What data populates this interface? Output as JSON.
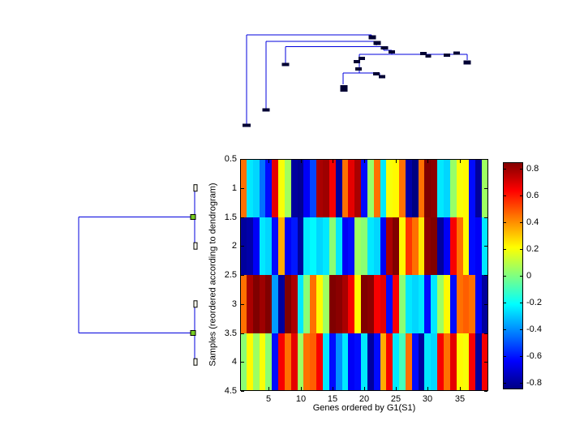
{
  "figure": {
    "background": "#ffffff"
  },
  "chart_data": [
    {
      "type": "heatmap",
      "title": "",
      "xlabel": "Genes ordered by G1(S1)",
      "ylabel": "Samples (reordered according to dendrogram)",
      "x_range": [
        0.5,
        39.5
      ],
      "y_range": [
        0.5,
        4.5
      ],
      "x_ticks": [
        5,
        10,
        15,
        20,
        25,
        30,
        35
      ],
      "x_tick_labels": [
        "5",
        "10",
        "15",
        "20",
        "25",
        "30",
        "35"
      ],
      "y_ticks": [
        0.5,
        1,
        1.5,
        2,
        2.5,
        3,
        3.5,
        4,
        4.5
      ],
      "y_tick_labels": [
        "0.5",
        "1",
        "1.5",
        "2",
        "2.5",
        "3",
        "3.5",
        "4",
        "4.5"
      ],
      "n_rows": 4,
      "n_cols": 39,
      "colormap": "jet",
      "clim": [
        -0.85,
        0.85
      ],
      "grid": false,
      "values": [
        [
          0.45,
          -0.25,
          -0.28,
          -0.45,
          -0.62,
          0.68,
          0.2,
          0.06,
          -0.8,
          -0.82,
          -0.65,
          -0.52,
          0.78,
          0.8,
          0.65,
          -0.8,
          0.45,
          0.68,
          0.78,
          -0.62,
          0.04,
          0.45,
          -0.25,
          0.2,
          0.22,
          0.45,
          -0.78,
          -0.85,
          0.45,
          0.85,
          0.83,
          -0.25,
          -0.28,
          0.04,
          0.2,
          0.22,
          -0.62,
          -0.8,
          0.05
        ],
        [
          -0.8,
          -0.78,
          -0.65,
          -0.25,
          -0.28,
          -0.62,
          0.35,
          -0.65,
          -0.6,
          -0.8,
          -0.25,
          -0.22,
          -0.28,
          -0.25,
          0.02,
          -0.25,
          -0.65,
          -0.62,
          0.05,
          0.02,
          -0.25,
          -0.28,
          -0.65,
          0.78,
          0.85,
          0.22,
          0.55,
          0.45,
          0.25,
          0.83,
          0.85,
          -0.8,
          -0.65,
          0.65,
          0.45,
          0.22,
          -0.62,
          -0.65,
          -0.25
        ],
        [
          0.45,
          0.78,
          0.85,
          0.8,
          0.85,
          -0.38,
          -0.8,
          0.85,
          0.78,
          -0.25,
          0.02,
          0.45,
          0.22,
          0.05,
          0.85,
          0.83,
          0.78,
          0.65,
          0.22,
          0.85,
          0.83,
          0.65,
          0.68,
          -0.62,
          0.65,
          0.02,
          -0.25,
          -0.28,
          -0.25,
          -0.62,
          -0.25,
          0.05,
          0.22,
          -0.62,
          0.45,
          0.48,
          0.45,
          -0.65,
          -0.8
        ],
        [
          0.02,
          0.22,
          0.05,
          0.2,
          0.02,
          -0.62,
          0.65,
          0.45,
          0.68,
          0.05,
          0.45,
          0.48,
          0.65,
          -0.25,
          -0.62,
          -0.4,
          -0.25,
          -0.65,
          -0.62,
          -0.25,
          -0.8,
          -0.62,
          0.35,
          0.65,
          -0.25,
          -0.1,
          0.45,
          -0.62,
          -0.8,
          -0.25,
          -0.28,
          0.65,
          0.45,
          0.68,
          0.22,
          0.2,
          0.65,
          -0.8,
          0.65
        ]
      ]
    },
    {
      "type": "dendrogram",
      "orientation": "top",
      "line_color": "#0000dd",
      "marker_color": "#000033",
      "segments": [
        [
          304,
          43,
          458,
          43
        ],
        [
          304,
          43,
          304,
          153
        ],
        [
          458,
          43,
          458,
          48
        ],
        [
          328,
          51,
          464,
          51
        ],
        [
          328,
          51,
          328,
          134
        ],
        [
          464,
          51,
          464,
          56
        ],
        [
          352,
          57.5,
          473,
          57.5
        ],
        [
          352,
          57.5,
          352,
          78
        ],
        [
          473,
          57.5,
          473,
          62
        ],
        [
          473,
          62,
          483,
          62
        ],
        [
          483,
          62,
          483,
          67
        ],
        [
          443,
          67,
          576,
          67
        ],
        [
          576,
          67,
          576,
          74
        ],
        [
          443,
          67,
          443,
          90
        ],
        [
          423,
          90,
          468,
          90
        ],
        [
          468,
          90,
          468,
          93
        ],
        [
          423,
          90,
          423,
          104
        ]
      ],
      "markers": [
        [
          304,
          154.5,
          10,
          4
        ],
        [
          328,
          135.5,
          9,
          4
        ],
        [
          352,
          79.5,
          9,
          4
        ],
        [
          459,
          46,
          9,
          5
        ],
        [
          465,
          53,
          9,
          5
        ],
        [
          474,
          59,
          9,
          4
        ],
        [
          483,
          64,
          8,
          4
        ],
        [
          446,
          72,
          8,
          4
        ],
        [
          440,
          76,
          8,
          4
        ],
        [
          442,
          85,
          8,
          4
        ],
        [
          522,
          66,
          8,
          4
        ],
        [
          528,
          69,
          7,
          4
        ],
        [
          551,
          68,
          8,
          4
        ],
        [
          563,
          65.5,
          8,
          4
        ],
        [
          576,
          77,
          9,
          5
        ],
        [
          464,
          91,
          8,
          4
        ],
        [
          471,
          94.5,
          8,
          4
        ],
        [
          424,
          109,
          9,
          8
        ]
      ]
    },
    {
      "type": "dendrogram",
      "orientation": "left",
      "structure": "samples (1,2) and (3,4) each pair-joined, both clusters joined at root",
      "line_color": "#0000dd",
      "leaf_marker_fill": "#ffffee",
      "leaf_marker_stroke": "#000000",
      "node_marker_fill": "#77cc22",
      "node_marker_stroke": "#000000",
      "segments": [
        [
          240,
          231.7,
          240,
          303.2
        ],
        [
          97,
          267.5,
          240,
          267.5
        ],
        [
          240,
          374.8,
          240,
          446.2
        ],
        [
          97,
          410.5,
          240,
          410.5
        ],
        [
          97,
          267.5,
          97,
          410.5
        ]
      ],
      "leaf_markers": [
        [
          241,
          231.7,
          4,
          8
        ],
        [
          241,
          303.2,
          4,
          8
        ],
        [
          241,
          374.8,
          4,
          8
        ],
        [
          241,
          446.2,
          4,
          8
        ]
      ],
      "node_markers": [
        [
          238,
          267.5,
          6,
          6
        ],
        [
          238,
          410.5,
          6,
          6
        ]
      ]
    },
    {
      "type": "colorbar",
      "colormap": "jet",
      "range": [
        -0.85,
        0.85
      ],
      "tick_values": [
        0.8,
        0.6,
        0.4,
        0.2,
        0,
        -0.2,
        -0.4,
        -0.6,
        -0.8
      ],
      "tick_labels": [
        "0.8",
        "0.6",
        "0.4",
        "0.2",
        "0",
        "-0.2",
        "-0.4",
        "-0.6",
        "-0.8"
      ]
    }
  ]
}
